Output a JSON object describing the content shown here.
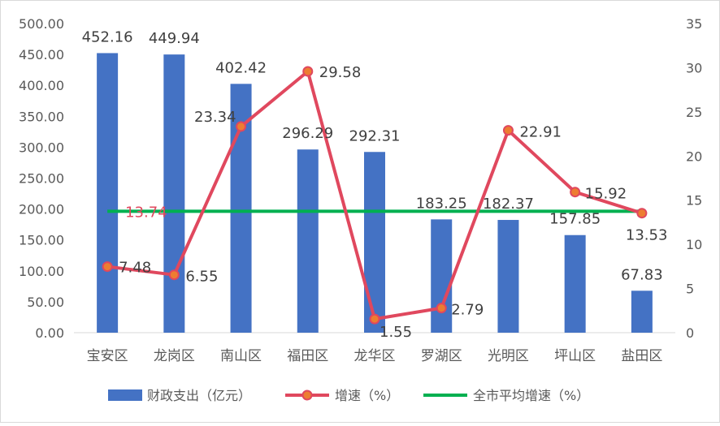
{
  "chart_data": {
    "type": "bar+line",
    "categories": [
      "宝安区",
      "龙岗区",
      "南山区",
      "福田区",
      "龙华区",
      "罗湖区",
      "光明区",
      "坪山区",
      "盐田区"
    ],
    "series": [
      {
        "name": "财政支出（亿元）",
        "type": "bar",
        "axis": "left",
        "color": "#4472c4",
        "values": [
          452.16,
          449.94,
          402.42,
          296.29,
          292.31,
          183.25,
          182.37,
          157.85,
          67.83
        ],
        "labels": [
          "452.16",
          "449.94",
          "402.42",
          "296.29",
          "292.31",
          "183.25",
          "182.37",
          "157.85",
          "67.83"
        ]
      },
      {
        "name": "增速（%）",
        "type": "line",
        "axis": "right",
        "color": "#e0485e",
        "marker_color": "#ed7d31",
        "values": [
          7.48,
          6.55,
          23.34,
          29.58,
          1.55,
          2.79,
          22.91,
          15.92,
          13.53
        ],
        "labels": [
          "7.48",
          "6.55",
          "23.34",
          "29.58",
          "1.55",
          "2.79",
          "22.91",
          "15.92",
          "13.53"
        ]
      },
      {
        "name": "全市平均增速（%）",
        "type": "line",
        "axis": "right",
        "color": "#00b050",
        "value": 13.74,
        "label": "13.74"
      }
    ],
    "y_left": {
      "min": 0,
      "max": 500,
      "step": 50,
      "ticks": [
        "0.00",
        "50.00",
        "100.00",
        "150.00",
        "200.00",
        "250.00",
        "300.00",
        "350.00",
        "400.00",
        "450.00",
        "500.00"
      ]
    },
    "y_right": {
      "min": 0,
      "max": 35,
      "step": 5,
      "ticks": [
        "0",
        "5",
        "10",
        "15",
        "20",
        "25",
        "30",
        "35"
      ]
    },
    "grid": false,
    "legend_position": "bottom"
  }
}
